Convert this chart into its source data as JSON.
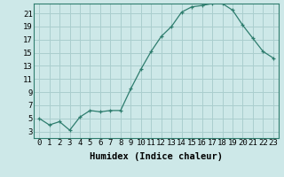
{
  "x": [
    0,
    1,
    2,
    3,
    4,
    5,
    6,
    7,
    8,
    9,
    10,
    11,
    12,
    13,
    14,
    15,
    16,
    17,
    18,
    19,
    20,
    21,
    22,
    23
  ],
  "y": [
    5.0,
    4.0,
    4.5,
    3.2,
    5.2,
    6.2,
    6.0,
    6.2,
    6.2,
    9.5,
    12.5,
    15.2,
    17.5,
    19.0,
    21.2,
    22.0,
    22.2,
    22.5,
    22.5,
    21.5,
    19.2,
    17.2,
    15.2,
    14.2
  ],
  "line_color": "#2e7d6e",
  "marker": "+",
  "marker_size": 3,
  "bg_color": "#cde8e8",
  "grid_color": "#aacece",
  "xlabel": "Humidex (Indice chaleur)",
  "xlim": [
    -0.5,
    23.5
  ],
  "ylim": [
    2.0,
    22.5
  ],
  "yticks": [
    3,
    5,
    7,
    9,
    11,
    13,
    15,
    17,
    19,
    21
  ],
  "xtick_labels": [
    "0",
    "1",
    "2",
    "3",
    "4",
    "5",
    "6",
    "7",
    "8",
    "9",
    "10",
    "11",
    "12",
    "13",
    "14",
    "15",
    "16",
    "17",
    "18",
    "19",
    "20",
    "21",
    "22",
    "23"
  ],
  "xlabel_fontsize": 7.5,
  "tick_fontsize": 6.5,
  "linewidth": 0.9,
  "markeredgewidth": 0.9
}
